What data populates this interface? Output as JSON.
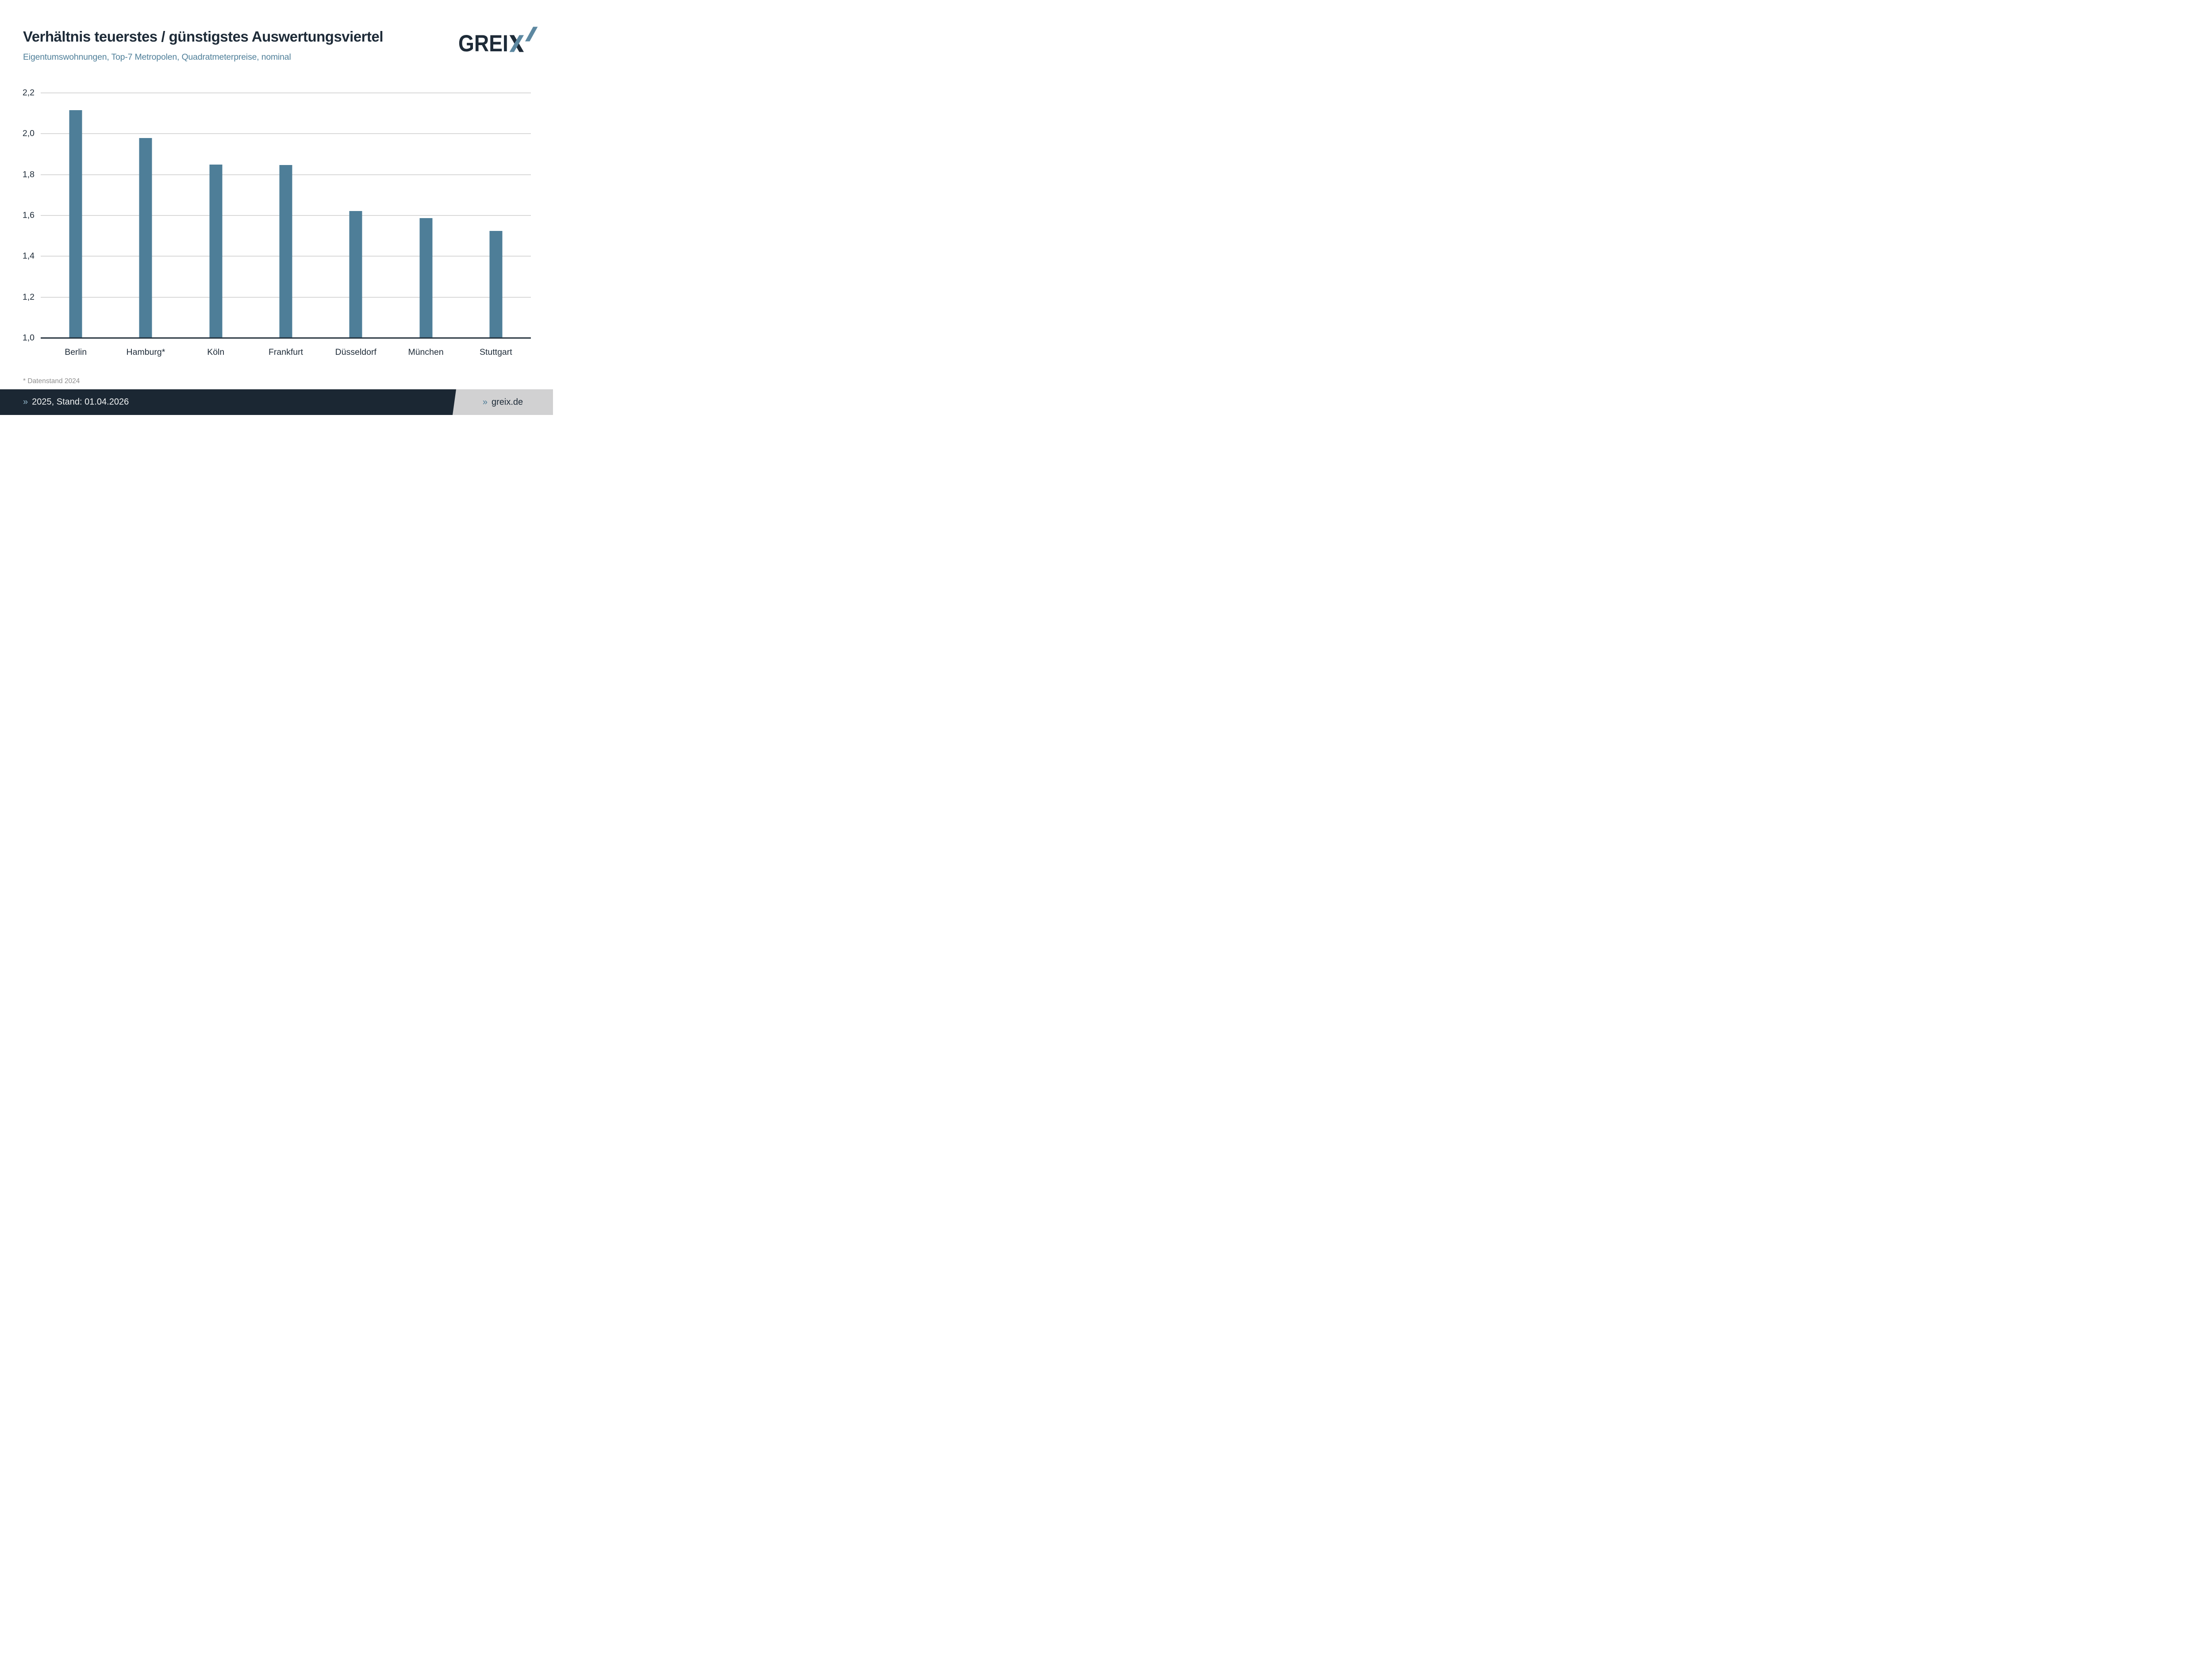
{
  "chart_data": {
    "type": "bar",
    "title": "Verhältnis teuerstes / günstigstes Auswertungsviertel",
    "subtitle": "Eigentumswohnungen, Top-7 Metropolen, Quadratmeterpreise, nominal",
    "categories": [
      "Berlin",
      "Hamburg*",
      "Köln",
      "Frankfurt",
      "Düsseldorf",
      "München",
      "Stuttgart"
    ],
    "values": [
      2.115,
      1.978,
      1.849,
      1.846,
      1.622,
      1.586,
      1.525
    ],
    "ylim": [
      1.0,
      2.2
    ],
    "ytick_labels": [
      "2,2",
      "2,0",
      "1,8",
      "1,6",
      "1,4",
      "1,2",
      "1,0"
    ],
    "grid": true,
    "xlabel": "",
    "ylabel": "",
    "bar_color": "#4e7e98",
    "gridline_color": "#d9d9d9",
    "axis_line_color": "#222f3a",
    "label_color": "#1e2b38"
  },
  "logo": {
    "text": "GREIX",
    "dark_color": "#1e2b38",
    "blue_color": "#5d88a1"
  },
  "footnote": "* Datenstand 2024",
  "footer": {
    "marker": "»",
    "left_text": "2025, Stand: 01.04.2026",
    "right_text": "greix.de",
    "bg_color": "#1b2733",
    "panel_color": "#d1d1d2",
    "left_marker_color": "#93b7cb",
    "right_marker_color": "#4a7a95",
    "text_color": "#f2f4f5"
  }
}
